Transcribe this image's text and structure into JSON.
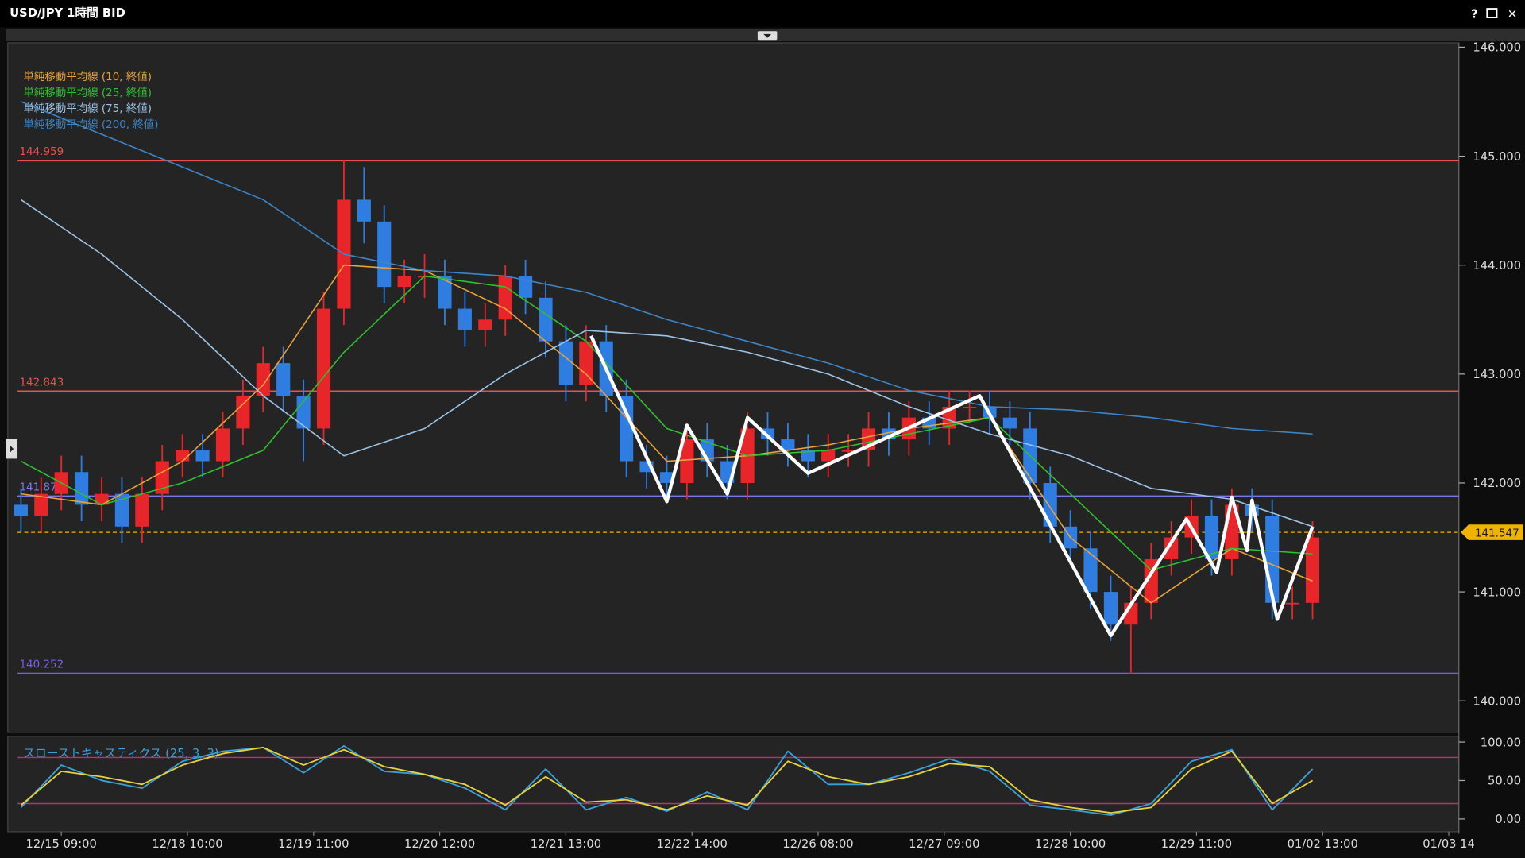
{
  "window": {
    "title": "USD/JPY 1時間 BID",
    "buttons": [
      "?",
      "✕"
    ]
  },
  "chart_data": [
    {
      "type": "candlestick",
      "up_color": "#e8262a",
      "down_color": "#2f7de1",
      "xlim": [
        -8.3,
        277
      ],
      "ylim": [
        139.72,
        146.04
      ],
      "xticks": [
        {
          "value": 0,
          "label": "12/15 09:00"
        },
        {
          "value": 25,
          "label": "12/18 10:00"
        },
        {
          "value": 50,
          "label": "12/19 11:00"
        },
        {
          "value": 75,
          "label": "12/20 12:00"
        },
        {
          "value": 100,
          "label": "12/21 13:00"
        },
        {
          "value": 125,
          "label": "12/22 14:00"
        },
        {
          "value": 150,
          "label": "12/26 08:00"
        },
        {
          "value": 175,
          "label": "12/27 09:00"
        },
        {
          "value": 200,
          "label": "12/28 10:00"
        },
        {
          "value": 225,
          "label": "12/29 11:00"
        },
        {
          "value": 250,
          "label": "01/02 13:00"
        },
        {
          "value": 275,
          "label": "01/03 14"
        }
      ],
      "yticks": [
        {
          "value": 140,
          "label": "140.000"
        },
        {
          "value": 141,
          "label": "141.000"
        },
        {
          "value": 142,
          "label": "142.000"
        },
        {
          "value": 143,
          "label": "143.000"
        },
        {
          "value": 144,
          "label": "144.000"
        },
        {
          "value": 145,
          "label": "145.000"
        },
        {
          "value": 146,
          "label": "146.000"
        }
      ],
      "x": [
        -8,
        -4,
        0,
        4,
        8,
        12,
        16,
        20,
        24,
        28,
        32,
        36,
        40,
        44,
        48,
        52,
        56,
        60,
        64,
        68,
        72,
        76,
        80,
        84,
        88,
        92,
        96,
        100,
        104,
        108,
        112,
        116,
        120,
        124,
        128,
        132,
        136,
        140,
        144,
        148,
        152,
        156,
        160,
        164,
        168,
        172,
        176,
        180,
        184,
        188,
        192,
        196,
        200,
        204,
        208,
        212,
        216,
        220,
        224,
        228,
        232,
        236,
        240,
        244,
        248
      ],
      "open": [
        141.8,
        141.7,
        141.9,
        142.1,
        141.8,
        141.9,
        141.6,
        141.9,
        142.2,
        142.3,
        142.2,
        142.5,
        142.8,
        143.1,
        142.8,
        142.5,
        143.6,
        144.6,
        144.4,
        143.8,
        143.9,
        143.9,
        143.6,
        143.4,
        143.5,
        143.9,
        143.7,
        143.3,
        142.9,
        143.3,
        142.8,
        142.2,
        142.1,
        142.0,
        142.4,
        142.2,
        142.0,
        142.5,
        142.4,
        142.3,
        142.2,
        142.3,
        142.3,
        142.5,
        142.4,
        142.6,
        142.5,
        142.7,
        142.7,
        142.6,
        142.5,
        142.0,
        141.6,
        141.4,
        141.0,
        140.7,
        140.9,
        141.3,
        141.5,
        141.7,
        141.3,
        141.8,
        141.7,
        140.9,
        140.9
      ],
      "high": [
        141.95,
        142.05,
        142.25,
        142.25,
        142.05,
        142.05,
        142.05,
        142.35,
        142.45,
        142.45,
        142.65,
        142.95,
        143.25,
        143.25,
        142.95,
        143.75,
        144.959,
        144.9,
        144.55,
        144.05,
        144.1,
        144.05,
        143.75,
        143.65,
        144.0,
        144.05,
        143.85,
        143.45,
        143.45,
        143.45,
        142.95,
        142.35,
        142.25,
        142.55,
        142.55,
        142.35,
        142.65,
        142.65,
        142.55,
        142.45,
        142.45,
        142.45,
        142.65,
        142.65,
        142.75,
        142.75,
        142.85,
        142.85,
        142.85,
        142.75,
        142.65,
        142.15,
        141.75,
        141.55,
        141.15,
        141.05,
        141.45,
        141.65,
        141.85,
        141.85,
        141.95,
        141.95,
        141.85,
        141.05,
        141.65
      ],
      "low": [
        141.55,
        141.55,
        141.75,
        141.65,
        141.65,
        141.45,
        141.45,
        141.75,
        142.05,
        142.05,
        142.05,
        142.35,
        142.65,
        142.65,
        142.2,
        142.35,
        143.45,
        144.2,
        143.65,
        143.65,
        143.7,
        143.45,
        143.25,
        143.25,
        143.35,
        143.55,
        143.15,
        142.75,
        142.75,
        142.65,
        142.05,
        141.95,
        141.85,
        141.85,
        142.05,
        141.85,
        141.85,
        142.25,
        142.15,
        142.05,
        142.05,
        142.15,
        142.15,
        142.25,
        142.25,
        142.35,
        142.35,
        142.55,
        142.45,
        142.35,
        141.85,
        141.45,
        141.25,
        140.85,
        140.55,
        140.25,
        140.75,
        141.15,
        141.35,
        141.15,
        141.15,
        141.55,
        140.75,
        140.75,
        140.75
      ],
      "close": [
        141.7,
        141.9,
        142.1,
        141.8,
        141.9,
        141.6,
        141.9,
        142.2,
        142.3,
        142.2,
        142.5,
        142.8,
        143.1,
        142.8,
        142.5,
        143.6,
        144.6,
        144.4,
        143.8,
        143.9,
        143.9,
        143.6,
        143.4,
        143.5,
        143.9,
        143.7,
        143.3,
        142.9,
        143.3,
        142.8,
        142.2,
        142.1,
        142.0,
        142.4,
        142.2,
        142.0,
        142.5,
        142.4,
        142.3,
        142.2,
        142.3,
        142.3,
        142.5,
        142.4,
        142.6,
        142.5,
        142.7,
        142.7,
        142.6,
        142.5,
        142.0,
        141.6,
        141.4,
        141.0,
        140.7,
        140.9,
        141.3,
        141.5,
        141.7,
        141.3,
        141.8,
        141.7,
        140.9,
        140.9,
        141.5
      ],
      "overlays": [
        {
          "name": "単純移動平均線 (10, 終値)",
          "color": "#e6a23c",
          "x": [
            -8,
            8,
            24,
            40,
            56,
            72,
            88,
            104,
            120,
            136,
            152,
            168,
            184,
            200,
            216,
            232,
            248
          ],
          "values": [
            141.9,
            141.8,
            142.2,
            142.9,
            144.0,
            143.95,
            143.6,
            143.0,
            142.2,
            142.25,
            142.35,
            142.5,
            142.6,
            141.5,
            140.9,
            141.4,
            141.1
          ]
        },
        {
          "name": "単純移動平均線 (25, 終値)",
          "color": "#2fc02f",
          "x": [
            -8,
            8,
            24,
            40,
            56,
            72,
            88,
            104,
            120,
            136,
            152,
            168,
            184,
            200,
            216,
            232,
            248
          ],
          "values": [
            142.2,
            141.8,
            142.0,
            142.3,
            143.2,
            143.9,
            143.8,
            143.3,
            142.5,
            142.25,
            142.3,
            142.45,
            142.6,
            141.9,
            141.2,
            141.4,
            141.35
          ]
        },
        {
          "name": "単純移動平均線 (75, 終値)",
          "color": "#9cc3e6",
          "x": [
            -8,
            8,
            24,
            40,
            56,
            72,
            88,
            104,
            120,
            136,
            152,
            168,
            184,
            200,
            216,
            232,
            248
          ],
          "values": [
            144.6,
            144.1,
            143.5,
            142.8,
            142.25,
            142.5,
            143.0,
            143.4,
            143.35,
            143.2,
            143.0,
            142.7,
            142.45,
            142.25,
            141.95,
            141.85,
            141.6
          ]
        },
        {
          "name": "単純移動平均線 (200, 終値)",
          "color": "#3d85c6",
          "x": [
            -8,
            8,
            24,
            40,
            56,
            72,
            88,
            104,
            120,
            136,
            152,
            168,
            184,
            200,
            216,
            232,
            248
          ],
          "values": [
            145.5,
            145.2,
            144.9,
            144.6,
            144.1,
            143.95,
            143.9,
            143.75,
            143.5,
            143.3,
            143.1,
            142.85,
            142.7,
            142.67,
            142.6,
            142.5,
            142.45
          ]
        }
      ],
      "zigzag": {
        "color": "#ffffff",
        "x": [
          105,
          120,
          124,
          132,
          136,
          148,
          182,
          208,
          223,
          229,
          232,
          235,
          236,
          241,
          248
        ],
        "values": [
          143.35,
          141.83,
          142.53,
          141.9,
          142.6,
          142.09,
          142.8,
          140.6,
          141.67,
          141.18,
          141.87,
          141.38,
          141.84,
          140.75,
          141.6
        ]
      },
      "hlines": [
        {
          "value": 144.959,
          "color": "#e8504a"
        },
        {
          "value": 142.843,
          "color": "#e8504a"
        },
        {
          "value": 141.879,
          "color": "#7a7ae6"
        },
        {
          "value": 140.252,
          "color": "#7a5cf0"
        }
      ],
      "current": {
        "value": 141.547,
        "color": "#f0b400"
      }
    },
    {
      "type": "line",
      "title": "スローストキャスティクス (25, 3, 3)",
      "xlim": [
        -8.3,
        277
      ],
      "ylim": [
        -14,
        105
      ],
      "yticks": [
        {
          "value": 0,
          "label": "0.00"
        },
        {
          "value": 50,
          "label": "50.00"
        },
        {
          "value": 100,
          "label": "100.00"
        }
      ],
      "hlines": [
        {
          "value": 20,
          "color": "#c0306a"
        },
        {
          "value": 80,
          "color": "#c0306a"
        }
      ],
      "x": [
        -8,
        0,
        8,
        16,
        24,
        32,
        40,
        48,
        56,
        64,
        72,
        80,
        88,
        96,
        104,
        112,
        120,
        128,
        136,
        144,
        152,
        160,
        168,
        176,
        184,
        192,
        200,
        208,
        216,
        224,
        232,
        240,
        248
      ],
      "series": [
        {
          "color": "#3aa0d8",
          "values": [
            15,
            70,
            50,
            40,
            75,
            88,
            93,
            60,
            95,
            62,
            58,
            40,
            12,
            65,
            12,
            28,
            10,
            35,
            12,
            88,
            45,
            45,
            60,
            78,
            62,
            18,
            12,
            5,
            20,
            75,
            90,
            12,
            65
          ]
        },
        {
          "color": "#e6d23c",
          "values": [
            18,
            62,
            55,
            45,
            70,
            85,
            93,
            70,
            90,
            68,
            58,
            45,
            18,
            55,
            22,
            25,
            12,
            30,
            18,
            75,
            55,
            45,
            55,
            72,
            68,
            25,
            15,
            8,
            15,
            65,
            88,
            20,
            50
          ]
        }
      ]
    }
  ]
}
